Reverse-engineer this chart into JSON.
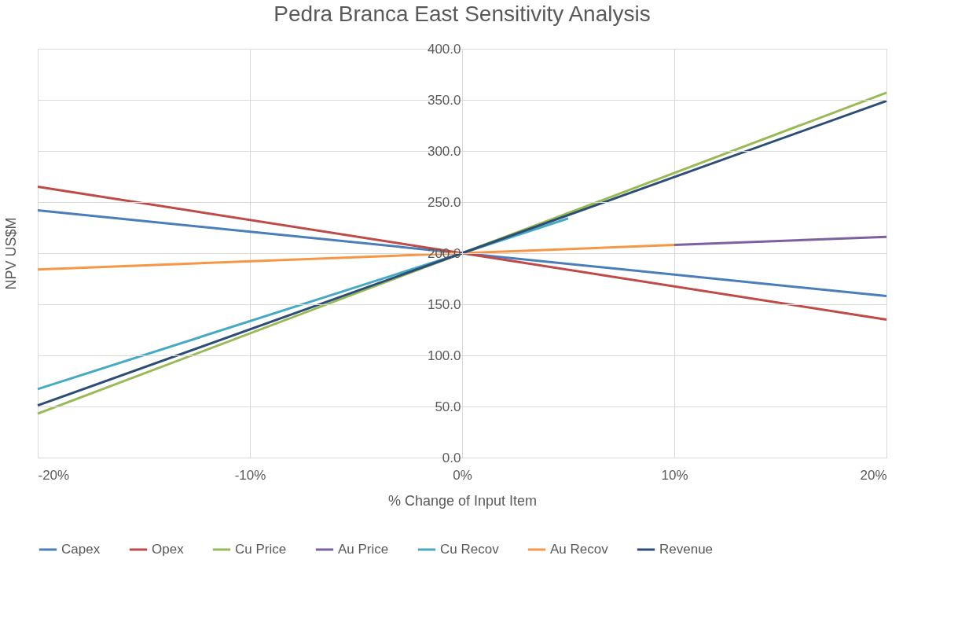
{
  "chart_data": {
    "type": "line",
    "title": "Pedra Branca East Sensitivity Analysis",
    "xlabel": "% Change of Input Item",
    "ylabel": "NPV US$M",
    "series": [
      {
        "name": "Capex",
        "color": "#4a7ebb",
        "x": [
          -20,
          0,
          20
        ],
        "values": [
          242,
          200,
          158
        ]
      },
      {
        "name": "Opex",
        "color": "#be4b48",
        "x": [
          -20,
          0,
          20
        ],
        "values": [
          265,
          200,
          135
        ]
      },
      {
        "name": "Cu Price",
        "color": "#98b954",
        "x": [
          -20,
          0,
          20
        ],
        "values": [
          43,
          200,
          357
        ]
      },
      {
        "name": "Au Price",
        "color": "#7d60a0",
        "x": [
          10,
          20
        ],
        "values": [
          208,
          216
        ]
      },
      {
        "name": "Cu Recov",
        "color": "#46aac5",
        "x": [
          -20,
          0,
          5
        ],
        "values": [
          67,
          200,
          234
        ]
      },
      {
        "name": "Au Recov",
        "color": "#f79646",
        "x": [
          -20,
          0,
          10
        ],
        "values": [
          184,
          200,
          208
        ]
      },
      {
        "name": "Revenue",
        "color": "#2c4d75",
        "x": [
          -20,
          0,
          20
        ],
        "values": [
          51,
          200,
          349
        ]
      }
    ],
    "xlim": [
      -20,
      20
    ],
    "xticks": [
      {
        "value": -20,
        "label": "-20%"
      },
      {
        "value": -10,
        "label": "-10%"
      },
      {
        "value": 0,
        "label": "0%"
      },
      {
        "value": 10,
        "label": "10%"
      },
      {
        "value": 20,
        "label": "20%"
      }
    ],
    "ylim": [
      0,
      400
    ],
    "yticks": [
      {
        "value": 0,
        "label": "0.0"
      },
      {
        "value": 50,
        "label": "50.0"
      },
      {
        "value": 100,
        "label": "100.0"
      },
      {
        "value": 150,
        "label": "150.0"
      },
      {
        "value": 200,
        "label": "200.0"
      },
      {
        "value": 250,
        "label": "250.0"
      },
      {
        "value": 300,
        "label": "300.0"
      },
      {
        "value": 350,
        "label": "350.0"
      },
      {
        "value": 400,
        "label": "400.0"
      }
    ],
    "grid": true,
    "legend": "bottom",
    "marker": "none",
    "line_style": "solid"
  }
}
